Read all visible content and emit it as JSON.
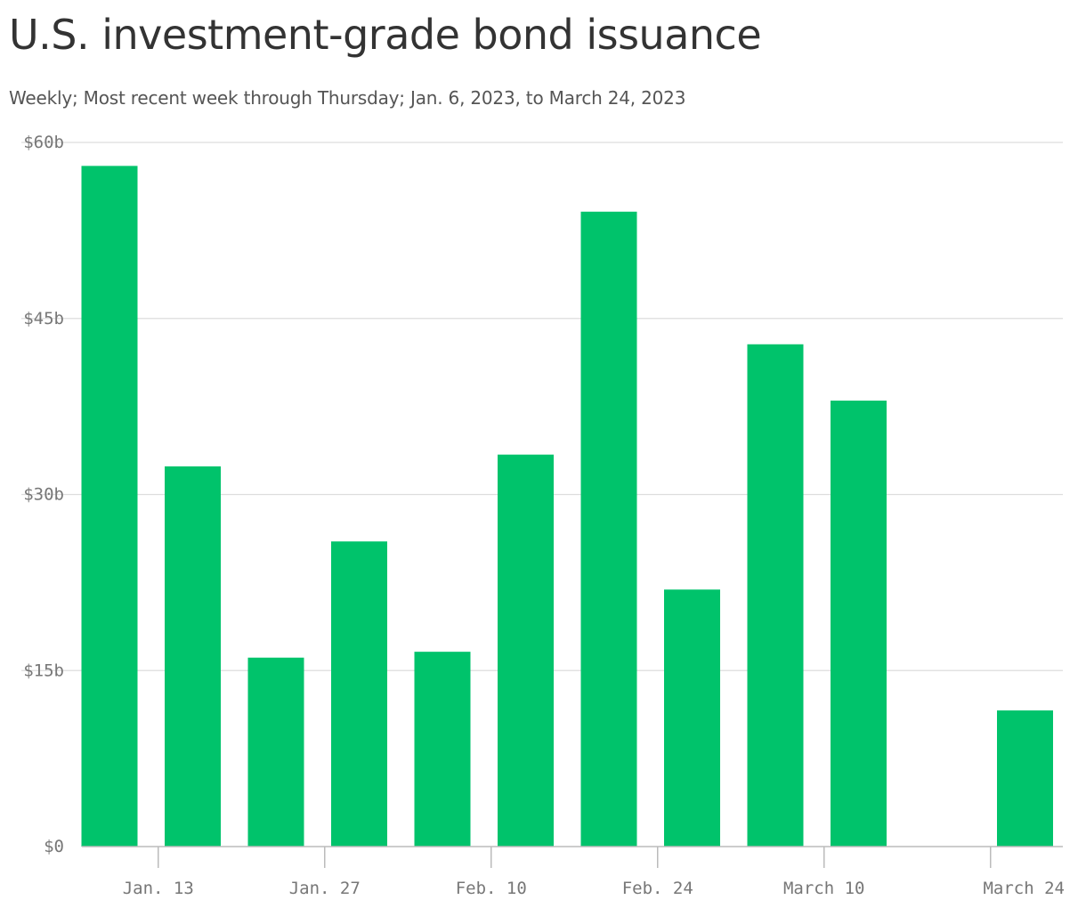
{
  "title": "U.S. investment-grade bond issuance",
  "subtitle": "Weekly; Most recent week through Thursday; Jan. 6, 2023, to March 24, 2023",
  "chart_data": {
    "type": "bar",
    "title": "U.S. investment-grade bond issuance",
    "subtitle": "Weekly; Most recent week through Thursday; Jan. 6, 2023, to March 24, 2023",
    "xlabel": "",
    "ylabel": "",
    "categories": [
      "Jan. 6",
      "Jan. 13",
      "Jan. 20",
      "Jan. 27",
      "Feb. 3",
      "Feb. 10",
      "Feb. 17",
      "Feb. 24",
      "March 3",
      "March 10",
      "March 17",
      "March 24"
    ],
    "values": [
      58,
      32.4,
      16.1,
      26,
      16.6,
      33.4,
      54.1,
      21.9,
      42.8,
      38,
      0,
      11.6
    ],
    "ylim": [
      0,
      60
    ],
    "yticks": [
      0,
      15,
      30,
      45,
      60
    ],
    "ytick_labels": [
      "$0",
      "$15b",
      "$30b",
      "$45b",
      "$60b"
    ],
    "xtick_labels": [
      {
        "category": "Jan. 13",
        "label": "Jan. 13"
      },
      {
        "category": "Jan. 27",
        "label": "Jan. 27"
      },
      {
        "category": "Feb. 10",
        "label": "Feb. 10"
      },
      {
        "category": "Feb. 24",
        "label": "Feb. 24"
      },
      {
        "category": "March 10",
        "label": "March 10"
      },
      {
        "category": "March 24",
        "label": "March 24"
      }
    ],
    "grid": true,
    "bar_color": "#00c36b",
    "grid_color": "#dddddd",
    "axis_color": "#bbbbbb"
  }
}
